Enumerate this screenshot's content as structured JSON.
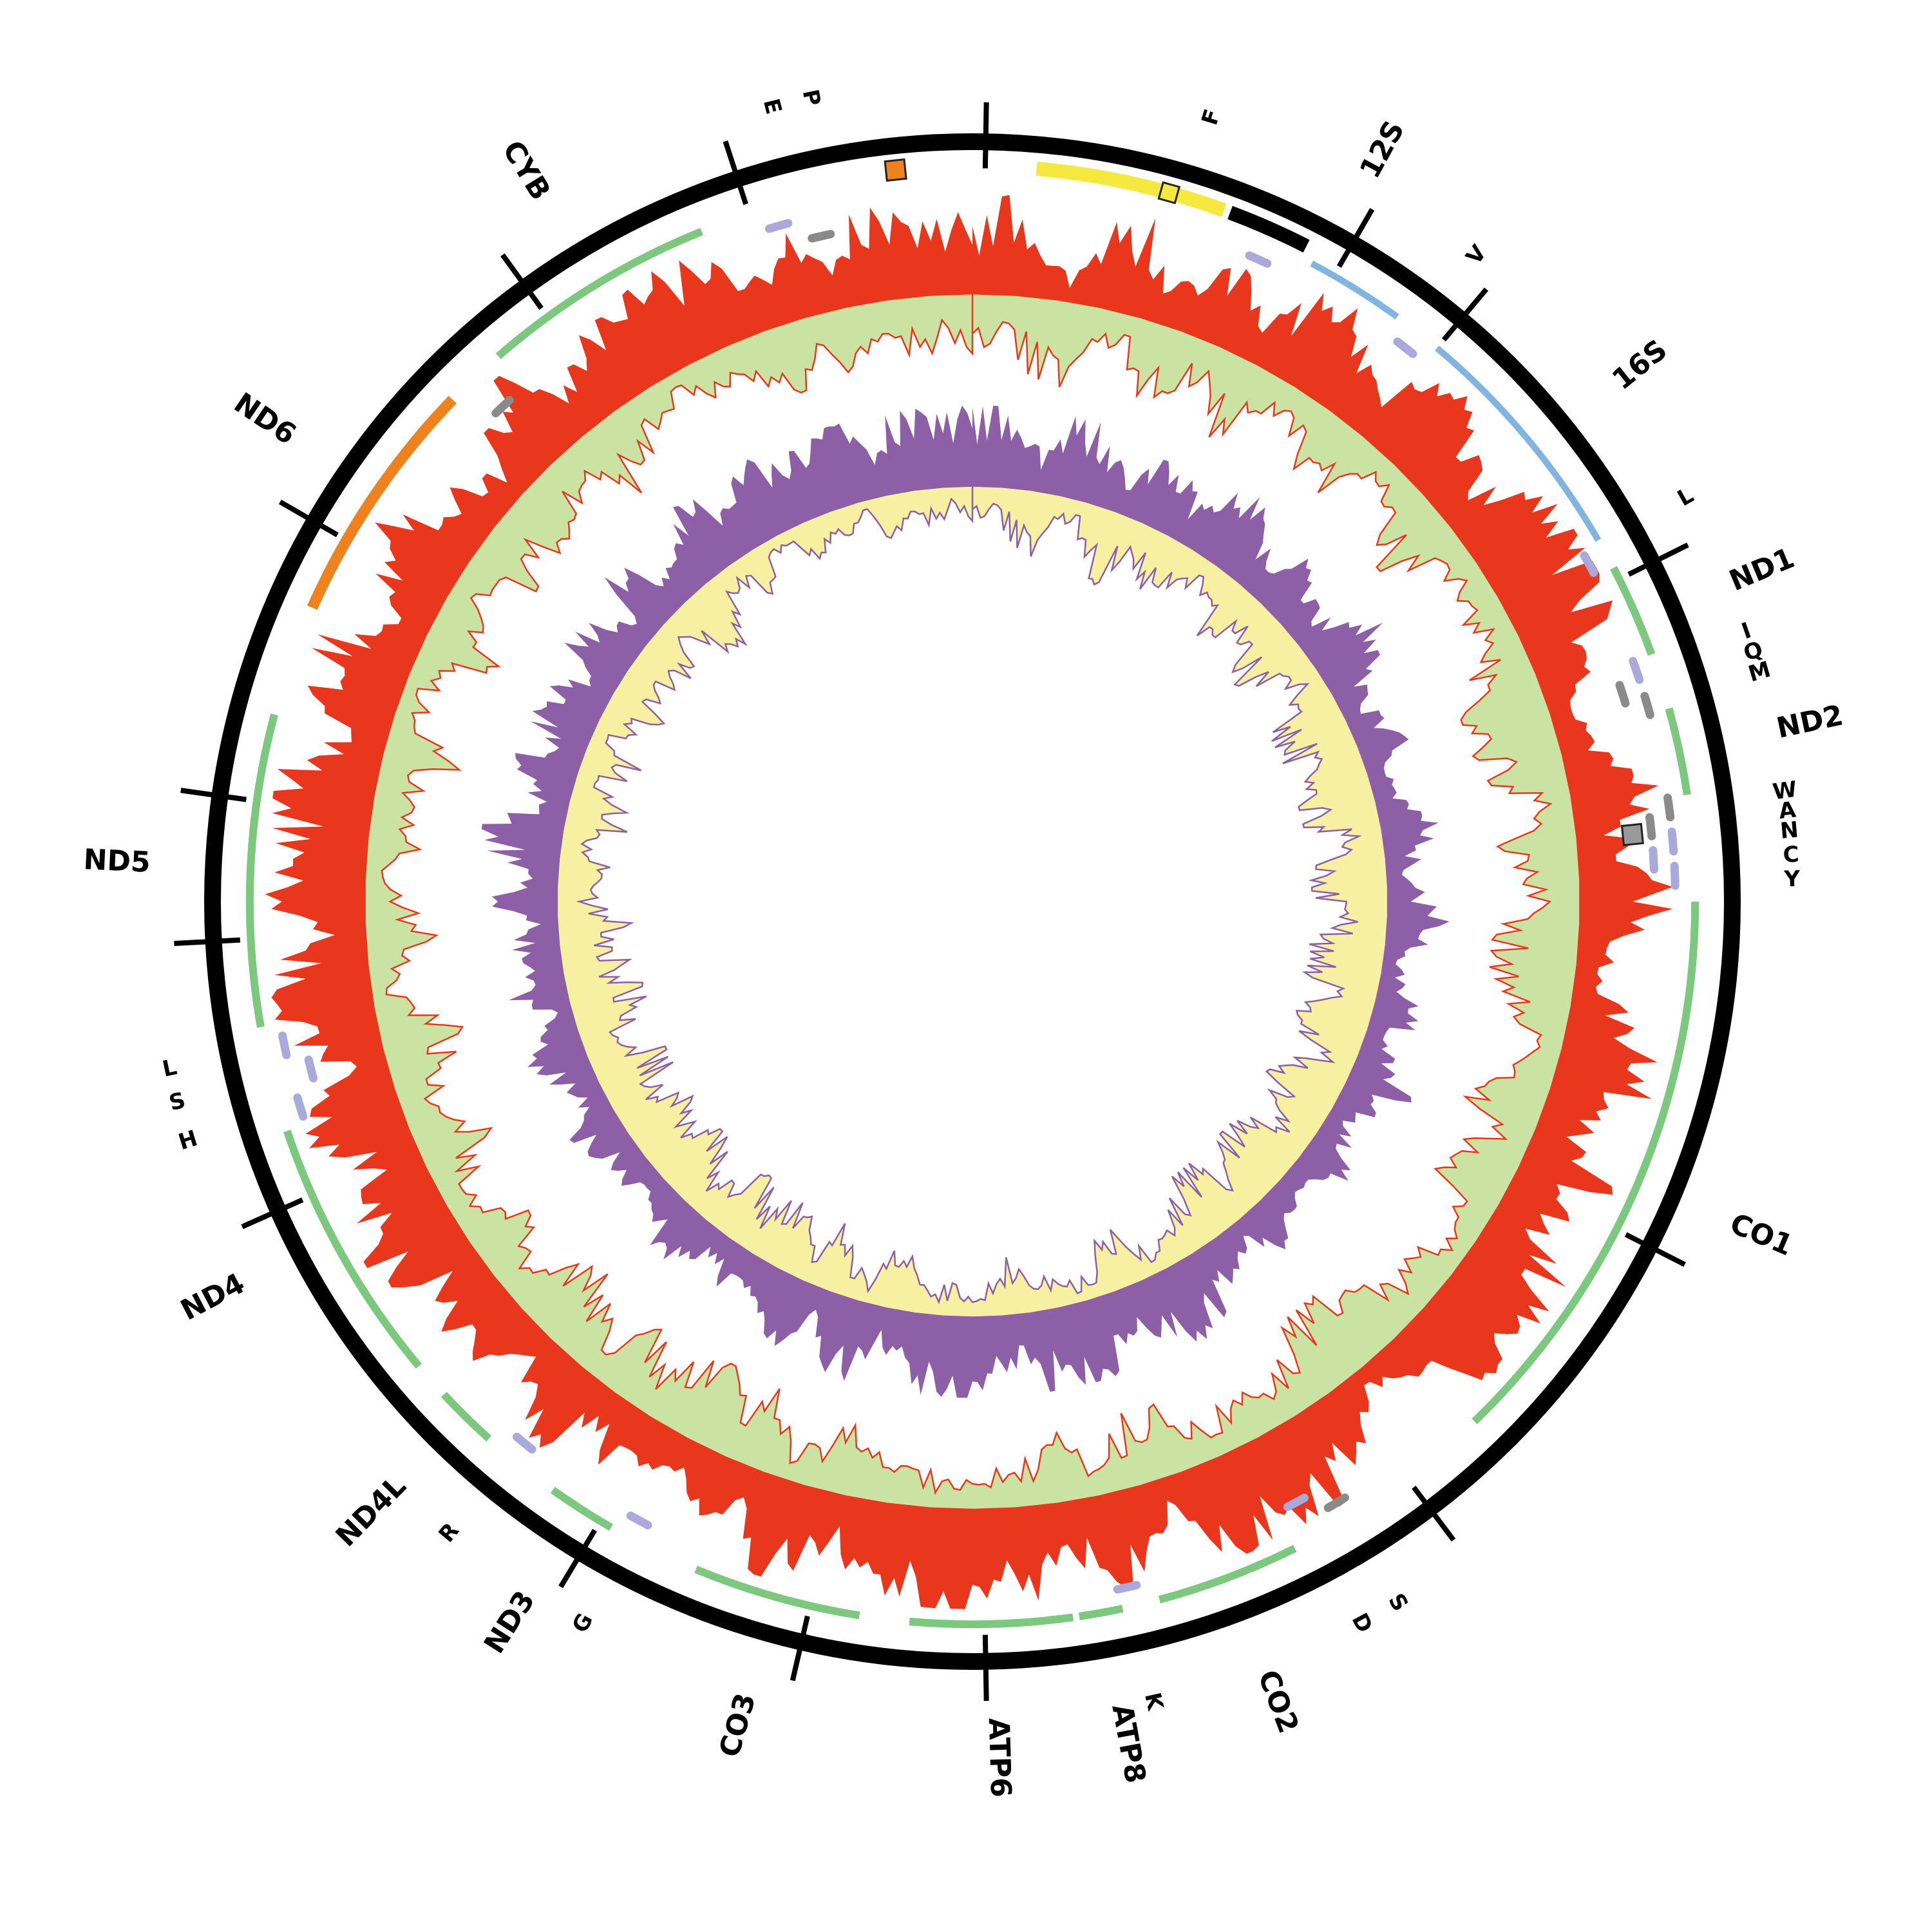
{
  "figure": {
    "kind": "circular mitochondrial genome map",
    "colors": {
      "backbone": "#000000",
      "histogram_out_red": "#E8371C",
      "histogram_in_green": "#CBE3A2",
      "histogram_out_purple": "#8C5FA6",
      "histogram_in_yellow": "#F6F0A0",
      "gene_green": "#7CC87E",
      "rrna_blue": "#82B4E0",
      "nd6_orange": "#F0821E",
      "trna_lavender": "#A9A9DC",
      "trna_gray": "#8A8A8A",
      "control_yellow": "#F5E83E"
    }
  },
  "chart_data": {
    "type": "circular-genome-map",
    "angle_unit": "degrees-clockwise-from-top",
    "backbone": {
      "ticks": [
        1,
        30,
        40,
        63.5,
        117,
        143,
        179,
        193,
        211,
        246,
        267,
        278,
        300,
        324,
        342
      ]
    },
    "features": [
      {
        "name": "control-region",
        "start": 5,
        "end": 20,
        "color": "#F5E83E",
        "kind": "bar"
      },
      {
        "name": "control-black",
        "start": 20.5,
        "end": 27,
        "color": "#000000",
        "kind": "bar"
      },
      {
        "name": "12S",
        "start": 28,
        "end": 36,
        "color": "#82B4E0",
        "kind": "rrna"
      },
      {
        "name": "16S",
        "start": 40,
        "end": 60,
        "color": "#82B4E0",
        "kind": "rrna"
      },
      {
        "name": "ND1",
        "start": 62.5,
        "end": 70,
        "color": "#7CC87E",
        "kind": "gene"
      },
      {
        "name": "ND2",
        "start": 74.5,
        "end": 81.5,
        "color": "#7CC87E",
        "kind": "gene"
      },
      {
        "name": "CO1",
        "start": 90,
        "end": 136,
        "color": "#7CC87E",
        "kind": "gene"
      },
      {
        "name": "CO2",
        "start": 153.5,
        "end": 165,
        "color": "#7CC87E",
        "kind": "gene"
      },
      {
        "name": "ATP8",
        "start": 168,
        "end": 171.5,
        "color": "#7CC87E",
        "kind": "gene"
      },
      {
        "name": "ATP6",
        "start": 172,
        "end": 185,
        "color": "#7CC87E",
        "kind": "gene"
      },
      {
        "name": "CO3",
        "start": 189,
        "end": 202.5,
        "color": "#7CC87E",
        "kind": "gene"
      },
      {
        "name": "ND3",
        "start": 210,
        "end": 215.5,
        "color": "#7CC87E",
        "kind": "gene"
      },
      {
        "name": "ND4L",
        "start": 222,
        "end": 227,
        "color": "#7CC87E",
        "kind": "gene"
      },
      {
        "name": "ND4",
        "start": 230,
        "end": 251.5,
        "color": "#7CC87E",
        "kind": "gene"
      },
      {
        "name": "ND5",
        "start": 260,
        "end": 285,
        "color": "#7CC87E",
        "kind": "gene"
      },
      {
        "name": "ND6",
        "start": 294,
        "end": 314,
        "color": "#F0821E",
        "kind": "gene-heavy"
      },
      {
        "name": "CYB",
        "start": 319,
        "end": 338,
        "color": "#7CC87E",
        "kind": "gene"
      }
    ],
    "markers": [
      {
        "name": "square-orange",
        "angle": 354,
        "track": "bar",
        "color": "#F0821E",
        "size": 30
      },
      {
        "name": "square-yellow",
        "angle": 15.5,
        "track": "bar",
        "color": "#F5E83E",
        "size": 26
      },
      {
        "name": "square-gray",
        "angle": 84.2,
        "track": "inner",
        "color": "#9A9A9A",
        "size": 30
      }
    ],
    "trna_marks": [
      {
        "name": "F",
        "angle": 24,
        "color": "#A9A9DC",
        "level": 1
      },
      {
        "name": "V",
        "angle": 38,
        "color": "#A9A9DC",
        "level": 1
      },
      {
        "name": "L",
        "angle": 61.3,
        "color": "#A9A9DC",
        "level": 1
      },
      {
        "name": "I",
        "angle": 70.8,
        "color": "#A9A9DC",
        "level": 1
      },
      {
        "name": "Q",
        "angle": 72.3,
        "color": "#8A8A8A",
        "level": 2
      },
      {
        "name": "M",
        "angle": 73.8,
        "color": "#8A8A8A",
        "level": 1
      },
      {
        "name": "W",
        "angle": 82.3,
        "color": "#8A8A8A",
        "level": 1
      },
      {
        "name": "A",
        "angle": 83.7,
        "color": "#8A8A8A",
        "level": 2
      },
      {
        "name": "N",
        "angle": 85.1,
        "color": "#A9A9DC",
        "level": 1
      },
      {
        "name": "C",
        "angle": 86.5,
        "color": "#A9A9DC",
        "level": 2
      },
      {
        "name": "Y",
        "angle": 87.9,
        "color": "#A9A9DC",
        "level": 1
      },
      {
        "name": "S2",
        "angle": 148.8,
        "color": "#8A8A8A",
        "level": 1
      },
      {
        "name": "D",
        "angle": 151.7,
        "color": "#A9A9DC",
        "level": 2
      },
      {
        "name": "K",
        "angle": 167.3,
        "color": "#A9A9DC",
        "level": 1
      },
      {
        "name": "G",
        "angle": 208.3,
        "color": "#A9A9DC",
        "level": 1
      },
      {
        "name": "R",
        "angle": 219.6,
        "color": "#A9A9DC",
        "level": 1
      },
      {
        "name": "H",
        "angle": 253,
        "color": "#A9A9DC",
        "level": 1
      },
      {
        "name": "S1",
        "angle": 255.8,
        "color": "#A9A9DC",
        "level": 2
      },
      {
        "name": "L1",
        "angle": 258.2,
        "color": "#A9A9DC",
        "level": 1
      },
      {
        "name": "T",
        "angle": 316.5,
        "color": "#8A8A8A",
        "level": 2
      },
      {
        "name": "E",
        "angle": 344,
        "color": "#A9A9DC",
        "level": 1
      },
      {
        "name": "P",
        "angle": 347.2,
        "color": "#8A8A8A",
        "level": 2
      }
    ],
    "labels": {
      "genes": [
        {
          "text": "12S",
          "angle": 28.7
        },
        {
          "text": "16S",
          "angle": 51.3
        },
        {
          "text": "ND1",
          "angle": 67.3
        },
        {
          "text": "ND2",
          "angle": 78
        },
        {
          "text": "CO1",
          "angle": 113
        },
        {
          "text": "CO2",
          "angle": 159.2
        },
        {
          "text": "ATP8",
          "angle": 169.6
        },
        {
          "text": "ATP6",
          "angle": 178.3
        },
        {
          "text": "CO3",
          "angle": 195.8
        },
        {
          "text": "ND3",
          "angle": 212.6
        },
        {
          "text": "ND4L",
          "angle": 224.5
        },
        {
          "text": "ND4",
          "angle": 242.4
        },
        {
          "text": "ND5",
          "angle": 272.6
        },
        {
          "text": "ND6",
          "angle": 304.2
        },
        {
          "text": "CYB",
          "angle": 328.5
        }
      ],
      "trnas": [
        {
          "text": "E",
          "angle": 345.8
        },
        {
          "text": "P",
          "angle": 348.6
        },
        {
          "text": "F",
          "angle": 17
        },
        {
          "text": "V",
          "angle": 38
        },
        {
          "text": "L",
          "angle": 60.5
        },
        {
          "text": "I",
          "angle": 70.8
        },
        {
          "text": "Q",
          "angle": 72.3
        },
        {
          "text": "M",
          "angle": 73.8
        },
        {
          "text": "W",
          "angle": 82.3
        },
        {
          "text": "A",
          "angle": 83.7
        },
        {
          "text": "N",
          "angle": 85.1
        },
        {
          "text": "C",
          "angle": 86.8
        },
        {
          "text": "Y",
          "angle": 88.5
        },
        {
          "text": "S",
          "angle": 148.8
        },
        {
          "text": "D",
          "angle": 151.7
        },
        {
          "text": "K",
          "angle": 167.3
        },
        {
          "text": "G",
          "angle": 208.3
        },
        {
          "text": "R",
          "angle": 219.6
        },
        {
          "text": "H",
          "angle": 253
        },
        {
          "text": "S",
          "angle": 255.8
        },
        {
          "text": "L",
          "angle": 258.2
        }
      ]
    },
    "tracks": [
      {
        "name": "outer-histogram",
        "bin_deg": 3,
        "out_color": "#E8371C",
        "in_color": "#CBE3A2",
        "out": [
          0.55,
          0.85,
          0.4,
          0.2,
          0.65,
          0.8,
          0.3,
          0.55,
          0.75,
          0.35,
          0.7,
          0.9,
          0.55,
          0.35,
          0.8,
          0.95,
          0.6,
          0.4,
          0.85,
          0.95,
          0.85,
          0.95,
          0.7,
          0.45,
          0.3,
          0.25,
          0.5,
          0.75,
          0.4,
          0.6,
          0.75,
          0.45,
          0.25,
          0.4,
          0.65,
          0.85,
          0.7,
          0.35,
          0.75,
          0.55,
          0.45,
          0.8,
          0.95,
          0.75,
          0.85,
          0.6,
          0.3,
          0.2,
          0.45,
          0.7,
          0.85,
          0.75,
          0.95,
          0.65,
          0.35,
          0.6,
          0.85,
          0.45,
          0.7,
          0.8,
          0.9,
          0.95,
          0.8,
          0.85,
          0.45,
          0.7,
          0.85,
          0.4,
          0.55,
          0.25,
          0.35,
          0.65,
          0.3,
          0.75,
          0.5,
          0.25,
          0.6,
          0.85,
          0.4,
          0.75,
          0.95,
          0.7,
          0.4,
          0.85,
          0.75,
          0.35,
          0.65,
          0.95,
          0.8,
          0.45,
          0.85,
          0.95,
          0.7,
          0.85,
          0.75,
          0.4,
          0.85,
          0.95,
          0.55,
          0.4,
          0.75,
          0.85,
          0.35,
          0.5,
          0.25,
          0.7,
          0.85,
          0.4,
          0.55,
          0.8,
          0.95,
          0.8,
          0.85,
          0.65,
          0.35,
          0.7,
          0.5,
          0.8,
          0.6,
          0.7
        ],
        "in": [
          0.6,
          0.35,
          0.7,
          0.85,
          0.45,
          0.3,
          0.75,
          0.55,
          0.35,
          0.8,
          0.5,
          0.3,
          0.6,
          0.8,
          0.4,
          0.25,
          0.55,
          0.75,
          0.35,
          0.3,
          0.4,
          0.3,
          0.55,
          0.75,
          0.85,
          0.8,
          0.6,
          0.35,
          0.75,
          0.5,
          0.45,
          0.7,
          0.85,
          0.75,
          0.5,
          0.3,
          0.45,
          0.75,
          0.4,
          0.6,
          0.65,
          0.35,
          0.25,
          0.5,
          0.35,
          0.55,
          0.8,
          0.85,
          0.7,
          0.45,
          0.35,
          0.5,
          0.25,
          0.55,
          0.75,
          0.55,
          0.3,
          0.65,
          0.45,
          0.35,
          0.3,
          0.25,
          0.45,
          0.35,
          0.7,
          0.5,
          0.3,
          0.75,
          0.55,
          0.85,
          0.75,
          0.45,
          0.8,
          0.4,
          0.65,
          0.85,
          0.55,
          0.3,
          0.7,
          0.4,
          0.25,
          0.5,
          0.75,
          0.35,
          0.45,
          0.8,
          0.55,
          0.25,
          0.4,
          0.7,
          0.35,
          0.25,
          0.5,
          0.35,
          0.45,
          0.75,
          0.3,
          0.25,
          0.55,
          0.75,
          0.45,
          0.3,
          0.75,
          0.6,
          0.85,
          0.45,
          0.3,
          0.7,
          0.55,
          0.35,
          0.25,
          0.4,
          0.3,
          0.5,
          0.75,
          0.45,
          0.6,
          0.35,
          0.55,
          0.45
        ]
      },
      {
        "name": "inner-histogram",
        "bin_deg": 3,
        "out_color": "#8C5FA6",
        "in_color": "#F6F0A0",
        "out": [
          0.8,
          0.9,
          0.6,
          0.4,
          0.75,
          0.9,
          0.5,
          0.35,
          0.8,
          0.6,
          0.4,
          0.7,
          0.85,
          0.5,
          0.3,
          0.75,
          0.45,
          0.35,
          0.7,
          0.85,
          0.45,
          0.25,
          0.35,
          0.55,
          0.3,
          0.2,
          0.4,
          0.6,
          0.35,
          0.25,
          0.4,
          0.65,
          0.35,
          0.2,
          0.3,
          0.55,
          0.25,
          0.35,
          0.65,
          0.45,
          0.25,
          0.35,
          0.6,
          0.3,
          0.2,
          0.45,
          0.6,
          0.25,
          0.35,
          0.55,
          0.75,
          0.9,
          0.6,
          0.4,
          0.8,
          0.95,
          0.7,
          0.85,
          0.45,
          0.75,
          0.95,
          0.8,
          0.9,
          0.6,
          0.4,
          0.85,
          0.7,
          0.35,
          0.75,
          0.5,
          0.3,
          0.55,
          0.25,
          0.4,
          0.65,
          0.35,
          0.2,
          0.5,
          0.3,
          0.45,
          0.55,
          0.25,
          0.35,
          0.65,
          0.4,
          0.2,
          0.55,
          0.35,
          0.5,
          0.3,
          0.75,
          0.4,
          0.65,
          0.85,
          0.35,
          0.55,
          0.75,
          0.4,
          0.85,
          0.65,
          0.35,
          0.7,
          0.55,
          0.3,
          0.8,
          0.5,
          0.35,
          0.65,
          0.85,
          0.55,
          0.85,
          0.95,
          0.65,
          0.85,
          0.75,
          0.95,
          0.55,
          0.85,
          0.75,
          0.85
        ],
        "in": [
          0.4,
          0.25,
          0.55,
          0.75,
          0.35,
          0.25,
          0.6,
          0.8,
          0.4,
          0.55,
          0.7,
          0.45,
          0.3,
          0.6,
          0.8,
          0.4,
          0.65,
          0.75,
          0.45,
          0.3,
          0.65,
          0.85,
          0.75,
          0.5,
          0.8,
          0.9,
          0.7,
          0.45,
          0.75,
          0.85,
          0.7,
          0.4,
          0.75,
          0.85,
          0.8,
          0.55,
          0.8,
          0.7,
          0.4,
          0.65,
          0.85,
          0.75,
          0.45,
          0.8,
          0.9,
          0.65,
          0.45,
          0.85,
          0.75,
          0.55,
          0.35,
          0.2,
          0.5,
          0.7,
          0.3,
          0.2,
          0.4,
          0.25,
          0.65,
          0.35,
          0.2,
          0.35,
          0.25,
          0.5,
          0.7,
          0.25,
          0.4,
          0.75,
          0.35,
          0.6,
          0.8,
          0.5,
          0.85,
          0.7,
          0.4,
          0.75,
          0.9,
          0.55,
          0.8,
          0.65,
          0.55,
          0.85,
          0.75,
          0.4,
          0.7,
          0.9,
          0.55,
          0.75,
          0.6,
          0.8,
          0.35,
          0.7,
          0.45,
          0.25,
          0.75,
          0.55,
          0.35,
          0.7,
          0.25,
          0.45,
          0.75,
          0.4,
          0.55,
          0.8,
          0.3,
          0.6,
          0.75,
          0.45,
          0.25,
          0.55,
          0.25,
          0.15,
          0.45,
          0.25,
          0.35,
          0.15,
          0.55,
          0.25,
          0.4,
          0.25
        ]
      }
    ]
  }
}
